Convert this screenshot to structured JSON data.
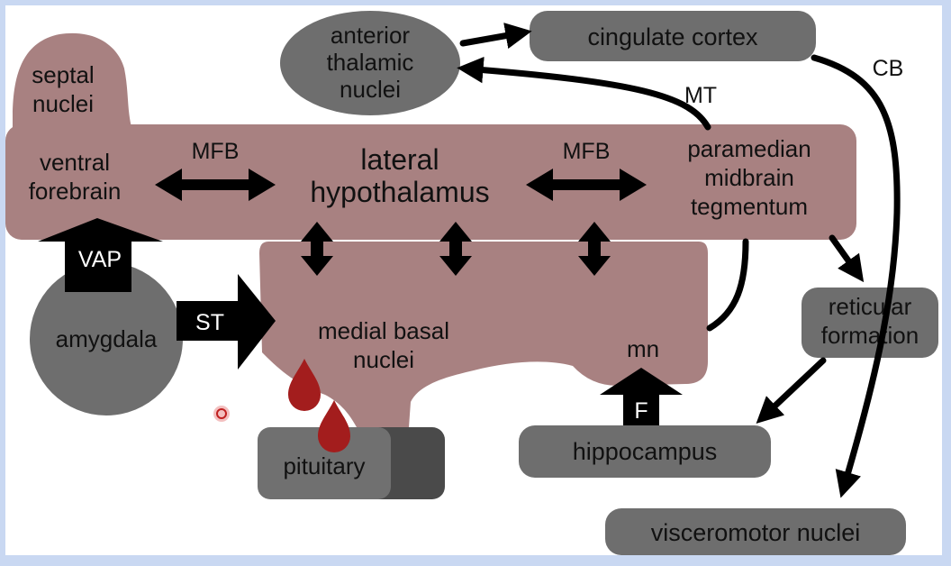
{
  "diagram": {
    "regions": {
      "septal_nuclei": [
        "septal",
        "nuclei"
      ],
      "ventral_forebrain": [
        "ventral",
        "forebrain"
      ],
      "lateral_hypothalamus": [
        "lateral",
        "hypothalamus"
      ],
      "paramedian_midbrain_tegmentum": [
        "paramedian",
        "midbrain",
        "tegmentum"
      ],
      "medial_basal_nuclei": [
        "medial basal",
        "nuclei"
      ],
      "mn": "mn",
      "anterior_thalamic_nuclei": [
        "anterior",
        "thalamic",
        "nuclei"
      ],
      "cingulate_cortex": "cingulate cortex",
      "reticular_formation": [
        "reticular",
        "formation"
      ],
      "amygdala": "amygdala",
      "pituitary": "pituitary",
      "hippocampus": "hippocampus",
      "visceromotor_nuclei": "visceromotor nuclei"
    },
    "pathways": {
      "mfb_left": "MFB",
      "mfb_right": "MFB",
      "mt": "MT",
      "cb": "CB",
      "vap": "VAP",
      "st": "ST",
      "f": "F"
    },
    "colors": {
      "brain_tissue": "#a88181",
      "node_gray": "#6e6e6e",
      "pituitary_dark": "#4a4a4a",
      "arrow": "#000000",
      "blood_drop": "#a31d1d",
      "frame": "#c9d8f2"
    }
  }
}
